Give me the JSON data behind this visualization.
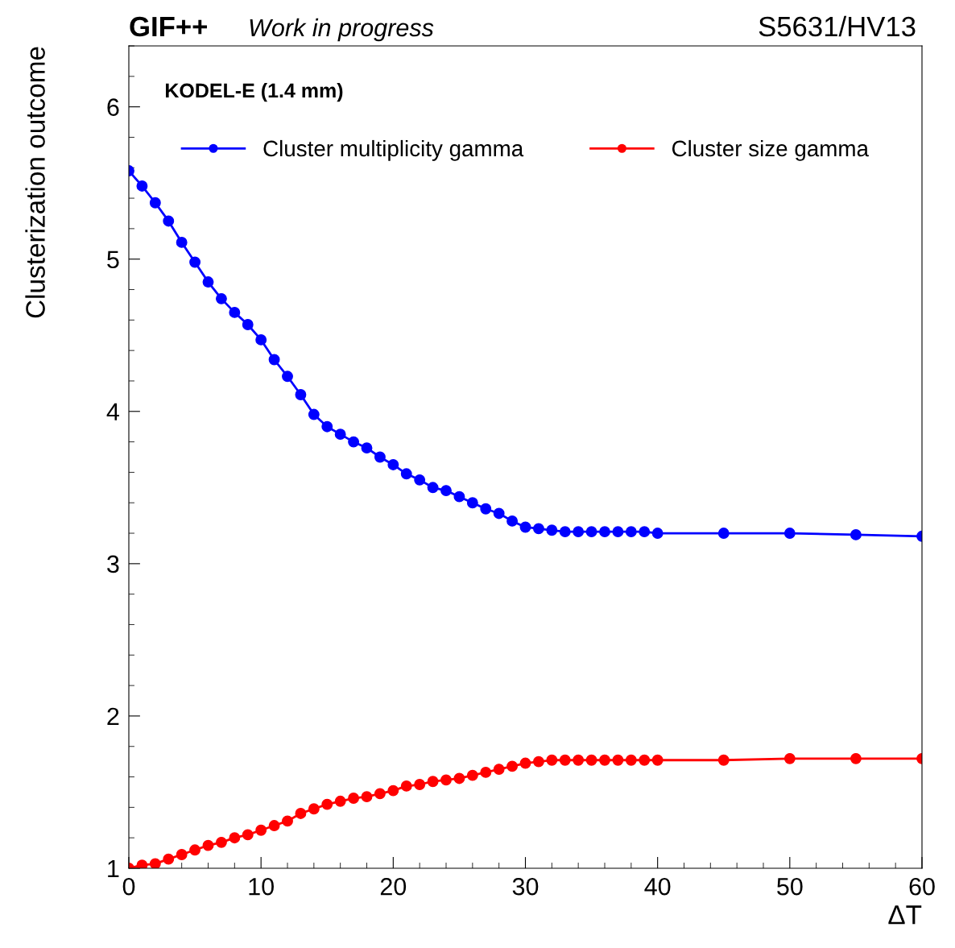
{
  "chart_data": {
    "type": "line",
    "title": "GIF++",
    "subtitle": "Work in progress",
    "xlabel": "ΔT",
    "ylabel": "Clusterization outcome",
    "annotations": [
      "S5631/HV13",
      "KODEL-E (1.4 mm)"
    ],
    "x": [
      0,
      1,
      2,
      3,
      4,
      5,
      6,
      7,
      8,
      9,
      10,
      11,
      12,
      13,
      14,
      15,
      16,
      17,
      18,
      19,
      20,
      21,
      22,
      23,
      24,
      25,
      26,
      27,
      28,
      29,
      30,
      31,
      32,
      33,
      34,
      35,
      36,
      37,
      38,
      39,
      40,
      45,
      50,
      55,
      60
    ],
    "series": [
      {
        "name": "Cluster multiplicity gamma",
        "color": "#0000ff",
        "values": [
          5.58,
          5.48,
          5.37,
          5.25,
          5.11,
          4.98,
          4.85,
          4.74,
          4.65,
          4.57,
          4.47,
          4.34,
          4.23,
          4.11,
          3.98,
          3.9,
          3.85,
          3.8,
          3.76,
          3.7,
          3.65,
          3.59,
          3.55,
          3.5,
          3.48,
          3.44,
          3.4,
          3.36,
          3.33,
          3.28,
          3.24,
          3.23,
          3.22,
          3.21,
          3.21,
          3.21,
          3.21,
          3.21,
          3.21,
          3.21,
          3.2,
          3.2,
          3.2,
          3.19,
          3.18
        ]
      },
      {
        "name": "Cluster size gamma",
        "color": "#ff0000",
        "values": [
          1.0,
          1.02,
          1.03,
          1.06,
          1.09,
          1.12,
          1.15,
          1.17,
          1.2,
          1.22,
          1.25,
          1.28,
          1.31,
          1.36,
          1.39,
          1.42,
          1.44,
          1.46,
          1.47,
          1.49,
          1.51,
          1.54,
          1.55,
          1.57,
          1.58,
          1.59,
          1.61,
          1.63,
          1.65,
          1.67,
          1.69,
          1.7,
          1.71,
          1.71,
          1.71,
          1.71,
          1.71,
          1.71,
          1.71,
          1.71,
          1.71,
          1.71,
          1.72,
          1.72,
          1.72
        ]
      }
    ],
    "xlim": [
      0,
      60
    ],
    "xticks": [
      0,
      10,
      20,
      30,
      40,
      50,
      60
    ],
    "ylim": [
      1,
      6.4
    ],
    "yticks": [
      1,
      2,
      3,
      4,
      5,
      6
    ],
    "grid": false,
    "legend": "top",
    "marker": "circle",
    "line_style": "solid"
  }
}
